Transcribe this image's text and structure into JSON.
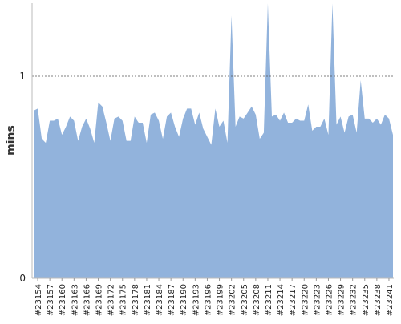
{
  "chart_data": {
    "type": "area",
    "title": "",
    "xlabel": "",
    "ylabel": "mins",
    "ylim": [
      0,
      1.36
    ],
    "yticks": [
      0,
      1
    ],
    "reference_line": 1,
    "grid": false,
    "legend": "none",
    "fill_color": "#92b3dc",
    "reference_line_color": "#555555",
    "x_tick_labels": [
      "#23154",
      "#23157",
      "#23160",
      "#23163",
      "#23166",
      "#23169",
      "#23172",
      "#23175",
      "#23178",
      "#23181",
      "#23184",
      "#23187",
      "#23190",
      "#23193",
      "#23196",
      "#23199",
      "#23202",
      "#23205",
      "#23208",
      "#23211",
      "#23214",
      "#23217",
      "#23220",
      "#23223",
      "#23226",
      "#23229",
      "#23232",
      "#23235",
      "#23238",
      "#23241"
    ],
    "series": [
      {
        "x": [
          23153,
          23154,
          23155,
          23156,
          23157,
          23158,
          23159,
          23160,
          23161,
          23162,
          23163,
          23164,
          23165,
          23166,
          23167,
          23168,
          23169,
          23170,
          23171,
          23172,
          23173,
          23174,
          23175,
          23176,
          23177,
          23178,
          23179,
          23180,
          23181,
          23182,
          23183,
          23184,
          23185,
          23186,
          23187,
          23188,
          23189,
          23190,
          23191,
          23192,
          23193,
          23194,
          23195,
          23196,
          23197,
          23198,
          23199,
          23200,
          23201,
          23202,
          23203,
          23204,
          23205,
          23206,
          23207,
          23208,
          23209,
          23210,
          23211,
          23212,
          23213,
          23214,
          23215,
          23216,
          23217,
          23218,
          23219,
          23220,
          23221,
          23222,
          23223,
          23224,
          23225,
          23226,
          23227,
          23228,
          23229,
          23230,
          23231,
          23232,
          23233,
          23234,
          23235,
          23236,
          23237,
          23238,
          23239,
          23240,
          23241,
          23242
        ],
        "values": [
          0.83,
          0.84,
          0.69,
          0.67,
          0.78,
          0.78,
          0.79,
          0.71,
          0.75,
          0.8,
          0.78,
          0.68,
          0.75,
          0.79,
          0.74,
          0.67,
          0.87,
          0.85,
          0.77,
          0.68,
          0.79,
          0.8,
          0.78,
          0.68,
          0.68,
          0.8,
          0.77,
          0.77,
          0.67,
          0.81,
          0.82,
          0.78,
          0.69,
          0.8,
          0.82,
          0.75,
          0.7,
          0.79,
          0.84,
          0.84,
          0.76,
          0.82,
          0.74,
          0.7,
          0.66,
          0.84,
          0.75,
          0.78,
          0.67,
          1.3,
          0.75,
          0.8,
          0.79,
          0.82,
          0.85,
          0.81,
          0.69,
          0.72,
          1.36,
          0.8,
          0.81,
          0.78,
          0.82,
          0.77,
          0.77,
          0.79,
          0.78,
          0.78,
          0.86,
          0.73,
          0.75,
          0.75,
          0.79,
          0.71,
          1.36,
          0.76,
          0.8,
          0.72,
          0.8,
          0.81,
          0.72,
          0.98,
          0.79,
          0.79,
          0.77,
          0.79,
          0.76,
          0.81,
          0.79,
          0.71
        ]
      }
    ]
  }
}
